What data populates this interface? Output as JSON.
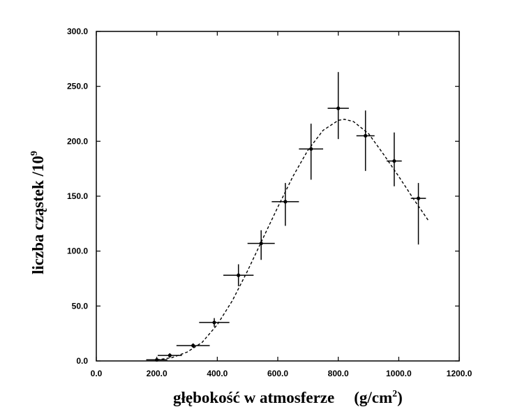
{
  "chart_data": {
    "type": "scatter",
    "xlabel": "głębokość w atmosferze",
    "xlabel_unit": "(g/cm",
    "xlabel_unit_exp": "2",
    "xlabel_unit_close": ")",
    "ylabel": "liczba cząstek /10",
    "ylabel_exp": "9",
    "xlim": [
      0,
      1200
    ],
    "ylim": [
      0,
      300
    ],
    "xticks": [
      0,
      200,
      400,
      600,
      800,
      1000,
      1200
    ],
    "yticks": [
      0,
      50,
      100,
      150,
      200,
      250,
      300
    ],
    "xtick_labels": [
      "0.0",
      "200.0",
      "400.0",
      "600.0",
      "800.0",
      "1000.0",
      "1200.0"
    ],
    "ytick_labels": [
      "0.0",
      "50.0",
      "100.0",
      "150.0",
      "200.0",
      "250.0",
      "300.0"
    ],
    "grid": false,
    "series": [
      {
        "marker": "dot",
        "color": "#000000",
        "points": [
          {
            "x": 200,
            "y": 1,
            "xerr": 35,
            "yerr_low": 1,
            "yerr_high": 1
          },
          {
            "x": 243,
            "y": 5,
            "xerr": 40,
            "yerr_low": 2,
            "yerr_high": 2
          },
          {
            "x": 320,
            "y": 14,
            "xerr": 55,
            "yerr_low": 2,
            "yerr_high": 2
          },
          {
            "x": 390,
            "y": 35,
            "xerr": 50,
            "yerr_low": 4,
            "yerr_high": 4
          },
          {
            "x": 470,
            "y": 78,
            "xerr": 50,
            "yerr_low": 10,
            "yerr_high": 10
          },
          {
            "x": 545,
            "y": 107,
            "xerr": 45,
            "yerr_low": 15,
            "yerr_high": 12
          },
          {
            "x": 625,
            "y": 145,
            "xerr": 45,
            "yerr_low": 22,
            "yerr_high": 17
          },
          {
            "x": 710,
            "y": 193,
            "xerr": 40,
            "yerr_low": 28,
            "yerr_high": 23
          },
          {
            "x": 800,
            "y": 230,
            "xerr": 35,
            "yerr_low": 28,
            "yerr_high": 33
          },
          {
            "x": 890,
            "y": 205,
            "xerr": 30,
            "yerr_low": 32,
            "yerr_high": 23
          },
          {
            "x": 985,
            "y": 182,
            "xerr": 25,
            "yerr_low": 23,
            "yerr_high": 26
          },
          {
            "x": 1065,
            "y": 148,
            "xerr": 25,
            "yerr_low": 42,
            "yerr_high": 14
          }
        ]
      },
      {
        "style": "dashed",
        "color": "#000000",
        "x": [
          200,
          250,
          300,
          350,
          400,
          450,
          500,
          550,
          600,
          650,
          700,
          750,
          800,
          820,
          850,
          900,
          950,
          1000,
          1050,
          1100
        ],
        "y": [
          1,
          3,
          8,
          17,
          33,
          55,
          82,
          111,
          140,
          168,
          192,
          210,
          219,
          220,
          218,
          207,
          188,
          168,
          147,
          127
        ]
      }
    ]
  }
}
